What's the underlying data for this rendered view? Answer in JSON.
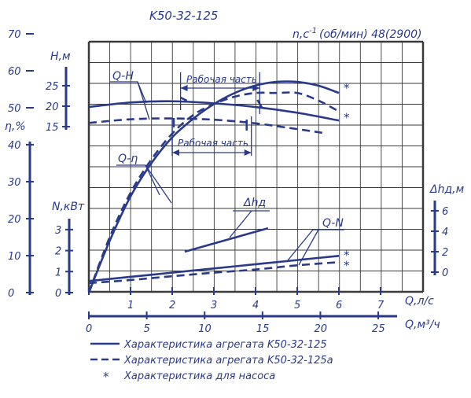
{
  "chart_data": {
    "type": "line",
    "title": "K50-32-125",
    "speed_label": "n,c",
    "speed_exp": "-1",
    "speed_value": "(об/мин) 48(2900)",
    "colors": {
      "line": "#2a3a8a",
      "grid": "#3a3a3a",
      "bg": "#ffffff"
    },
    "grid": true,
    "x_axes": {
      "flow_ls": {
        "label": "Q,л/с",
        "ticks": [
          "0",
          "1",
          "2",
          "3",
          "4",
          "5",
          "6",
          "7"
        ],
        "range": [
          0,
          8
        ]
      },
      "flow_m3h": {
        "label": "Q,м³/ч",
        "ticks": [
          "0",
          "5",
          "10",
          "15",
          "20",
          "25"
        ],
        "range": [
          0,
          28.8
        ]
      }
    },
    "y_axes": {
      "head": {
        "label": "H,м",
        "ticks": [
          "15",
          "20",
          "25"
        ],
        "range": [
          15,
          28
        ]
      },
      "efficiency": {
        "label": "η,%",
        "ticks": [
          "0",
          "10",
          "20",
          "30",
          "40",
          "50",
          "60",
          "70"
        ],
        "range": [
          0,
          70
        ]
      },
      "power": {
        "label": "N,кВт",
        "ticks": [
          "0",
          "1",
          "2",
          "3"
        ],
        "range": [
          0,
          3.2
        ]
      },
      "npsh": {
        "label": "Δhд,м",
        "ticks": [
          "0",
          "2",
          "4",
          "6"
        ],
        "range": [
          0,
          6.5
        ]
      }
    },
    "curve_labels": {
      "qh": "Q-H",
      "qeta": "Q-η",
      "qn": "Q-N",
      "npsh": "Δhд",
      "working_zone_top": "Рабочая часть",
      "working_zone_bottom": "Рабочая часть"
    },
    "series": [
      {
        "name": "Q-H (K50-32-125)",
        "style": "solid",
        "axis": "head",
        "x": [
          0,
          1,
          2,
          3,
          4,
          5,
          6
        ],
        "y": [
          19.8,
          20.9,
          21.2,
          20.7,
          19.8,
          18.4,
          16.5
        ]
      },
      {
        "name": "Q-H (K50-32-125a)",
        "style": "dashed",
        "axis": "head",
        "x": [
          0,
          1,
          2,
          3,
          4,
          5,
          5.6
        ],
        "y": [
          15.9,
          16.8,
          17.0,
          16.7,
          15.8,
          14.4,
          13.5
        ]
      },
      {
        "name": "Q-η (K50-32-125)",
        "style": "solid",
        "axis": "efficiency",
        "x": [
          0,
          0.5,
          1,
          1.5,
          2,
          2.5,
          3,
          3.5,
          4,
          4.5,
          5,
          5.5,
          6
        ],
        "y": [
          0,
          14,
          26,
          35,
          42,
          47,
          51,
          54,
          56,
          57,
          57,
          56,
          54
        ]
      },
      {
        "name": "Q-η (K50-32-125a)",
        "style": "dashed",
        "axis": "efficiency",
        "x": [
          0,
          0.5,
          1,
          1.5,
          2,
          2.5,
          3,
          3.5,
          4,
          4.5,
          5,
          5.5,
          6
        ],
        "y": [
          0,
          15,
          27,
          36,
          43,
          48,
          51,
          53,
          54,
          54,
          54,
          52,
          49
        ]
      },
      {
        "name": "Q-N (K50-32-125)",
        "style": "solid",
        "axis": "power",
        "x": [
          0,
          1,
          2,
          3,
          4,
          5,
          6
        ],
        "y": [
          0.55,
          0.75,
          0.95,
          1.15,
          1.35,
          1.55,
          1.75
        ]
      },
      {
        "name": "Q-N (K50-32-125a)",
        "style": "dashed",
        "axis": "power",
        "x": [
          0,
          1,
          2,
          3,
          4,
          5,
          6
        ],
        "y": [
          0.45,
          0.6,
          0.78,
          0.95,
          1.1,
          1.3,
          1.45
        ]
      },
      {
        "name": "Δhд",
        "style": "solid",
        "axis": "npsh",
        "x": [
          2.3,
          4.3
        ],
        "y": [
          2.0,
          4.3
        ]
      }
    ],
    "pump_only_markers": [
      {
        "axis": "efficiency",
        "x": 6,
        "y": 56
      },
      {
        "axis": "efficiency",
        "x": 6,
        "y": 48
      },
      {
        "axis": "power",
        "x": 6,
        "y": 1.9
      },
      {
        "axis": "power",
        "x": 6,
        "y": 1.4
      }
    ],
    "working_zone": {
      "top_x": [
        2.2,
        4.1
      ],
      "bottom_x": [
        2.0,
        3.9
      ]
    },
    "legend": [
      {
        "style": "solid",
        "text": "Характеристика агрегата K50-32-125"
      },
      {
        "style": "dashed",
        "text": "Характеристика агрегата K50-32-125a"
      },
      {
        "style": "star",
        "text": "Характеристика для насоса"
      }
    ]
  }
}
